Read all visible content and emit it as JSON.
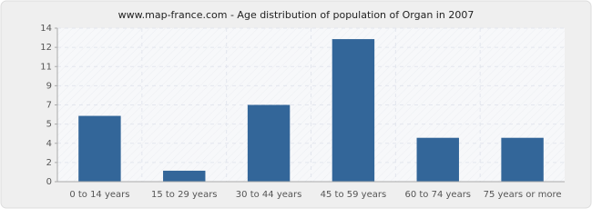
{
  "chart_data": {
    "type": "bar",
    "title": "www.map-france.com - Age distribution of population of Organ in 2007",
    "categories": [
      "0 to 14 years",
      "15 to 29 years",
      "30 to 44 years",
      "45 to 59 years",
      "60 to 74 years",
      "75 years or more"
    ],
    "values": [
      6,
      1,
      7,
      13,
      4,
      4
    ],
    "color": "#336699",
    "ylim": [
      0,
      14
    ],
    "yticks": [
      0,
      {
        "value": 1.75,
        "label": "2"
      },
      {
        "value": 3.5,
        "label": "4"
      },
      {
        "value": 5.25,
        "label": "5"
      },
      7,
      {
        "value": 8.75,
        "label": "9"
      },
      {
        "value": 10.5,
        "label": "11"
      },
      {
        "value": 12.25,
        "label": "12"
      },
      14
    ],
    "grid": true
  }
}
